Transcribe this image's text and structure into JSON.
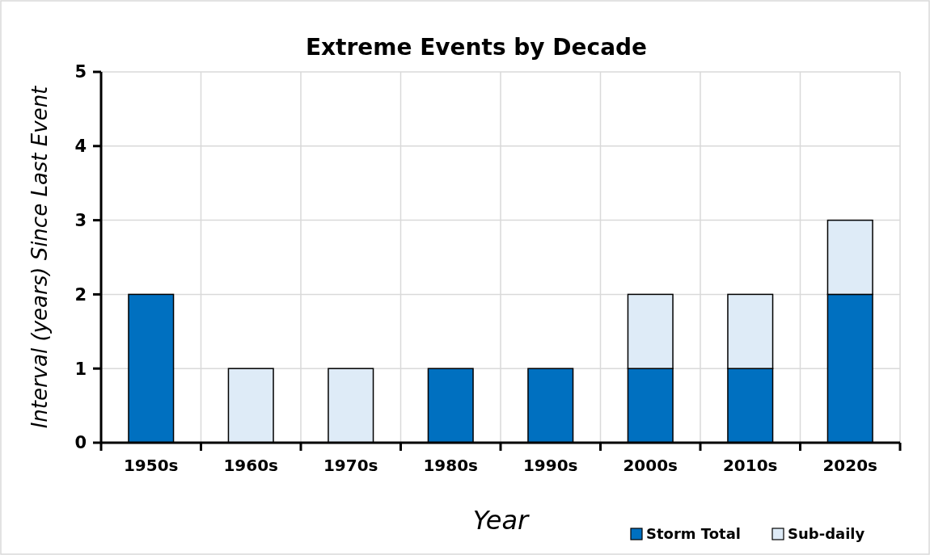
{
  "chart_data": {
    "type": "bar",
    "title": "Extreme Events by Decade",
    "xlabel": "Year",
    "ylabel": "Interval (years) Since Last Event",
    "categories": [
      "1950s",
      "1960s",
      "1970s",
      "1980s",
      "1990s",
      "2000s",
      "2010s",
      "2020s"
    ],
    "series": [
      {
        "name": "Storm Total",
        "color": "#0070c0",
        "values": [
          2,
          null,
          null,
          1,
          1,
          1,
          1,
          2
        ]
      },
      {
        "name": "Sub-daily",
        "color": "#deebf7",
        "values": [
          null,
          1,
          1,
          null,
          null,
          1,
          1,
          1
        ]
      }
    ],
    "stacked": true,
    "ylim": [
      0,
      5
    ],
    "yticks": [
      0,
      1,
      2,
      3,
      4,
      5
    ],
    "grid": true,
    "legend": "bottom right"
  }
}
